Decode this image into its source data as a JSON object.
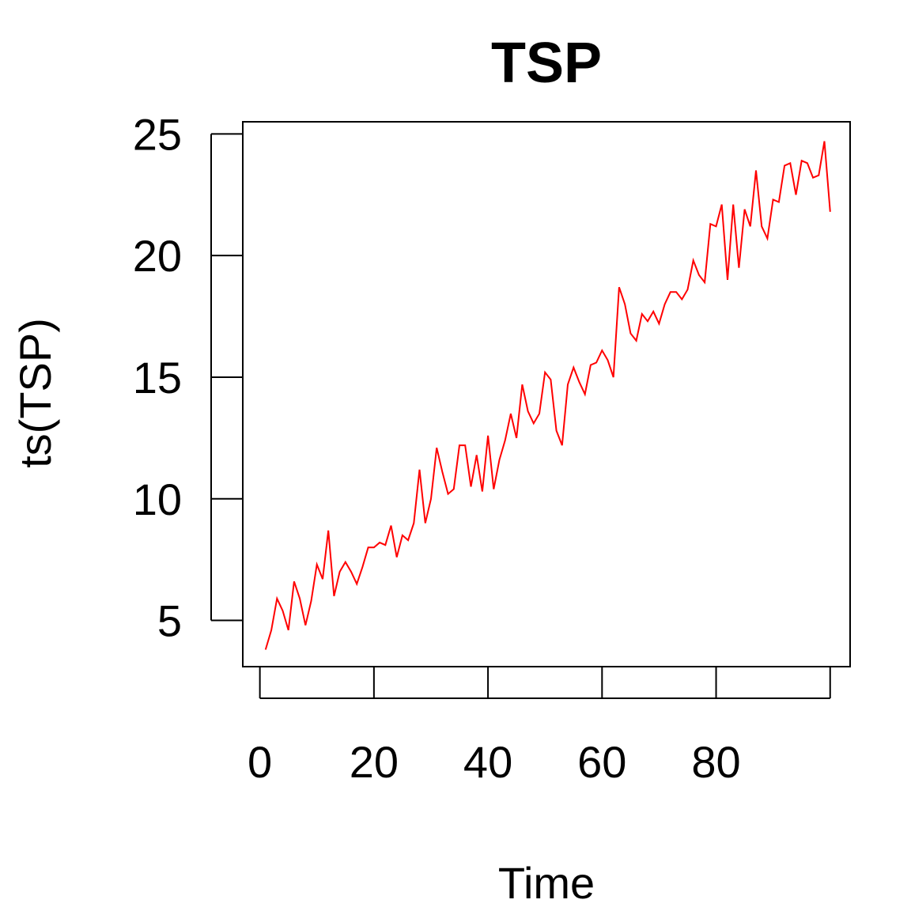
{
  "chart_data": {
    "type": "line",
    "title": "TSP",
    "xlabel": "Time",
    "ylabel": "ts(TSP)",
    "x_ticks": [
      0,
      20,
      40,
      60,
      80
    ],
    "y_ticks": [
      5,
      10,
      15,
      20,
      25
    ],
    "xlim": [
      -3.0,
      103.5
    ],
    "ylim": [
      3.1,
      25.5
    ],
    "grid": false,
    "series": [
      {
        "color": "#ff0000",
        "x": [
          1,
          2,
          3,
          4,
          5,
          6,
          7,
          8,
          9,
          10,
          11,
          12,
          13,
          14,
          15,
          16,
          17,
          18,
          19,
          20,
          21,
          22,
          23,
          24,
          25,
          26,
          27,
          28,
          29,
          30,
          31,
          32,
          33,
          34,
          35,
          36,
          37,
          38,
          39,
          40,
          41,
          42,
          43,
          44,
          45,
          46,
          47,
          48,
          49,
          50,
          51,
          52,
          53,
          54,
          55,
          56,
          57,
          58,
          59,
          60,
          61,
          62,
          63,
          64,
          65,
          66,
          67,
          68,
          69,
          70,
          71,
          72,
          73,
          74,
          75,
          76,
          77,
          78,
          79,
          80,
          81,
          82,
          83,
          84,
          85,
          86,
          87,
          88,
          89,
          90,
          91,
          92,
          93,
          94,
          95,
          96,
          97,
          98,
          99,
          100
        ],
        "values": [
          3.8,
          4.6,
          5.9,
          5.4,
          4.6,
          6.6,
          5.9,
          4.8,
          5.8,
          7.3,
          6.7,
          8.7,
          6.0,
          7.0,
          7.4,
          7.0,
          6.5,
          7.2,
          8.0,
          8.0,
          8.2,
          8.1,
          8.9,
          7.6,
          8.5,
          8.3,
          9.0,
          11.2,
          9.0,
          10.0,
          12.1,
          11.1,
          10.2,
          10.4,
          12.2,
          12.2,
          10.5,
          11.8,
          10.3,
          12.6,
          10.4,
          11.6,
          12.4,
          13.5,
          12.5,
          14.7,
          13.6,
          13.1,
          13.5,
          15.2,
          14.9,
          12.8,
          12.2,
          14.7,
          15.4,
          14.8,
          14.3,
          15.5,
          15.6,
          16.1,
          15.7,
          15.0,
          18.7,
          18.0,
          16.8,
          16.5,
          17.6,
          17.3,
          17.7,
          17.2,
          18.0,
          18.5,
          18.5,
          18.2,
          18.6,
          19.8,
          19.2,
          18.9,
          21.3,
          21.2,
          22.1,
          19.0,
          22.1,
          19.5,
          21.9,
          21.2,
          23.5,
          21.2,
          20.7,
          22.3,
          22.2,
          23.7,
          23.8,
          22.5,
          23.9,
          23.8,
          23.2,
          23.3,
          24.7,
          21.8
        ]
      }
    ]
  }
}
